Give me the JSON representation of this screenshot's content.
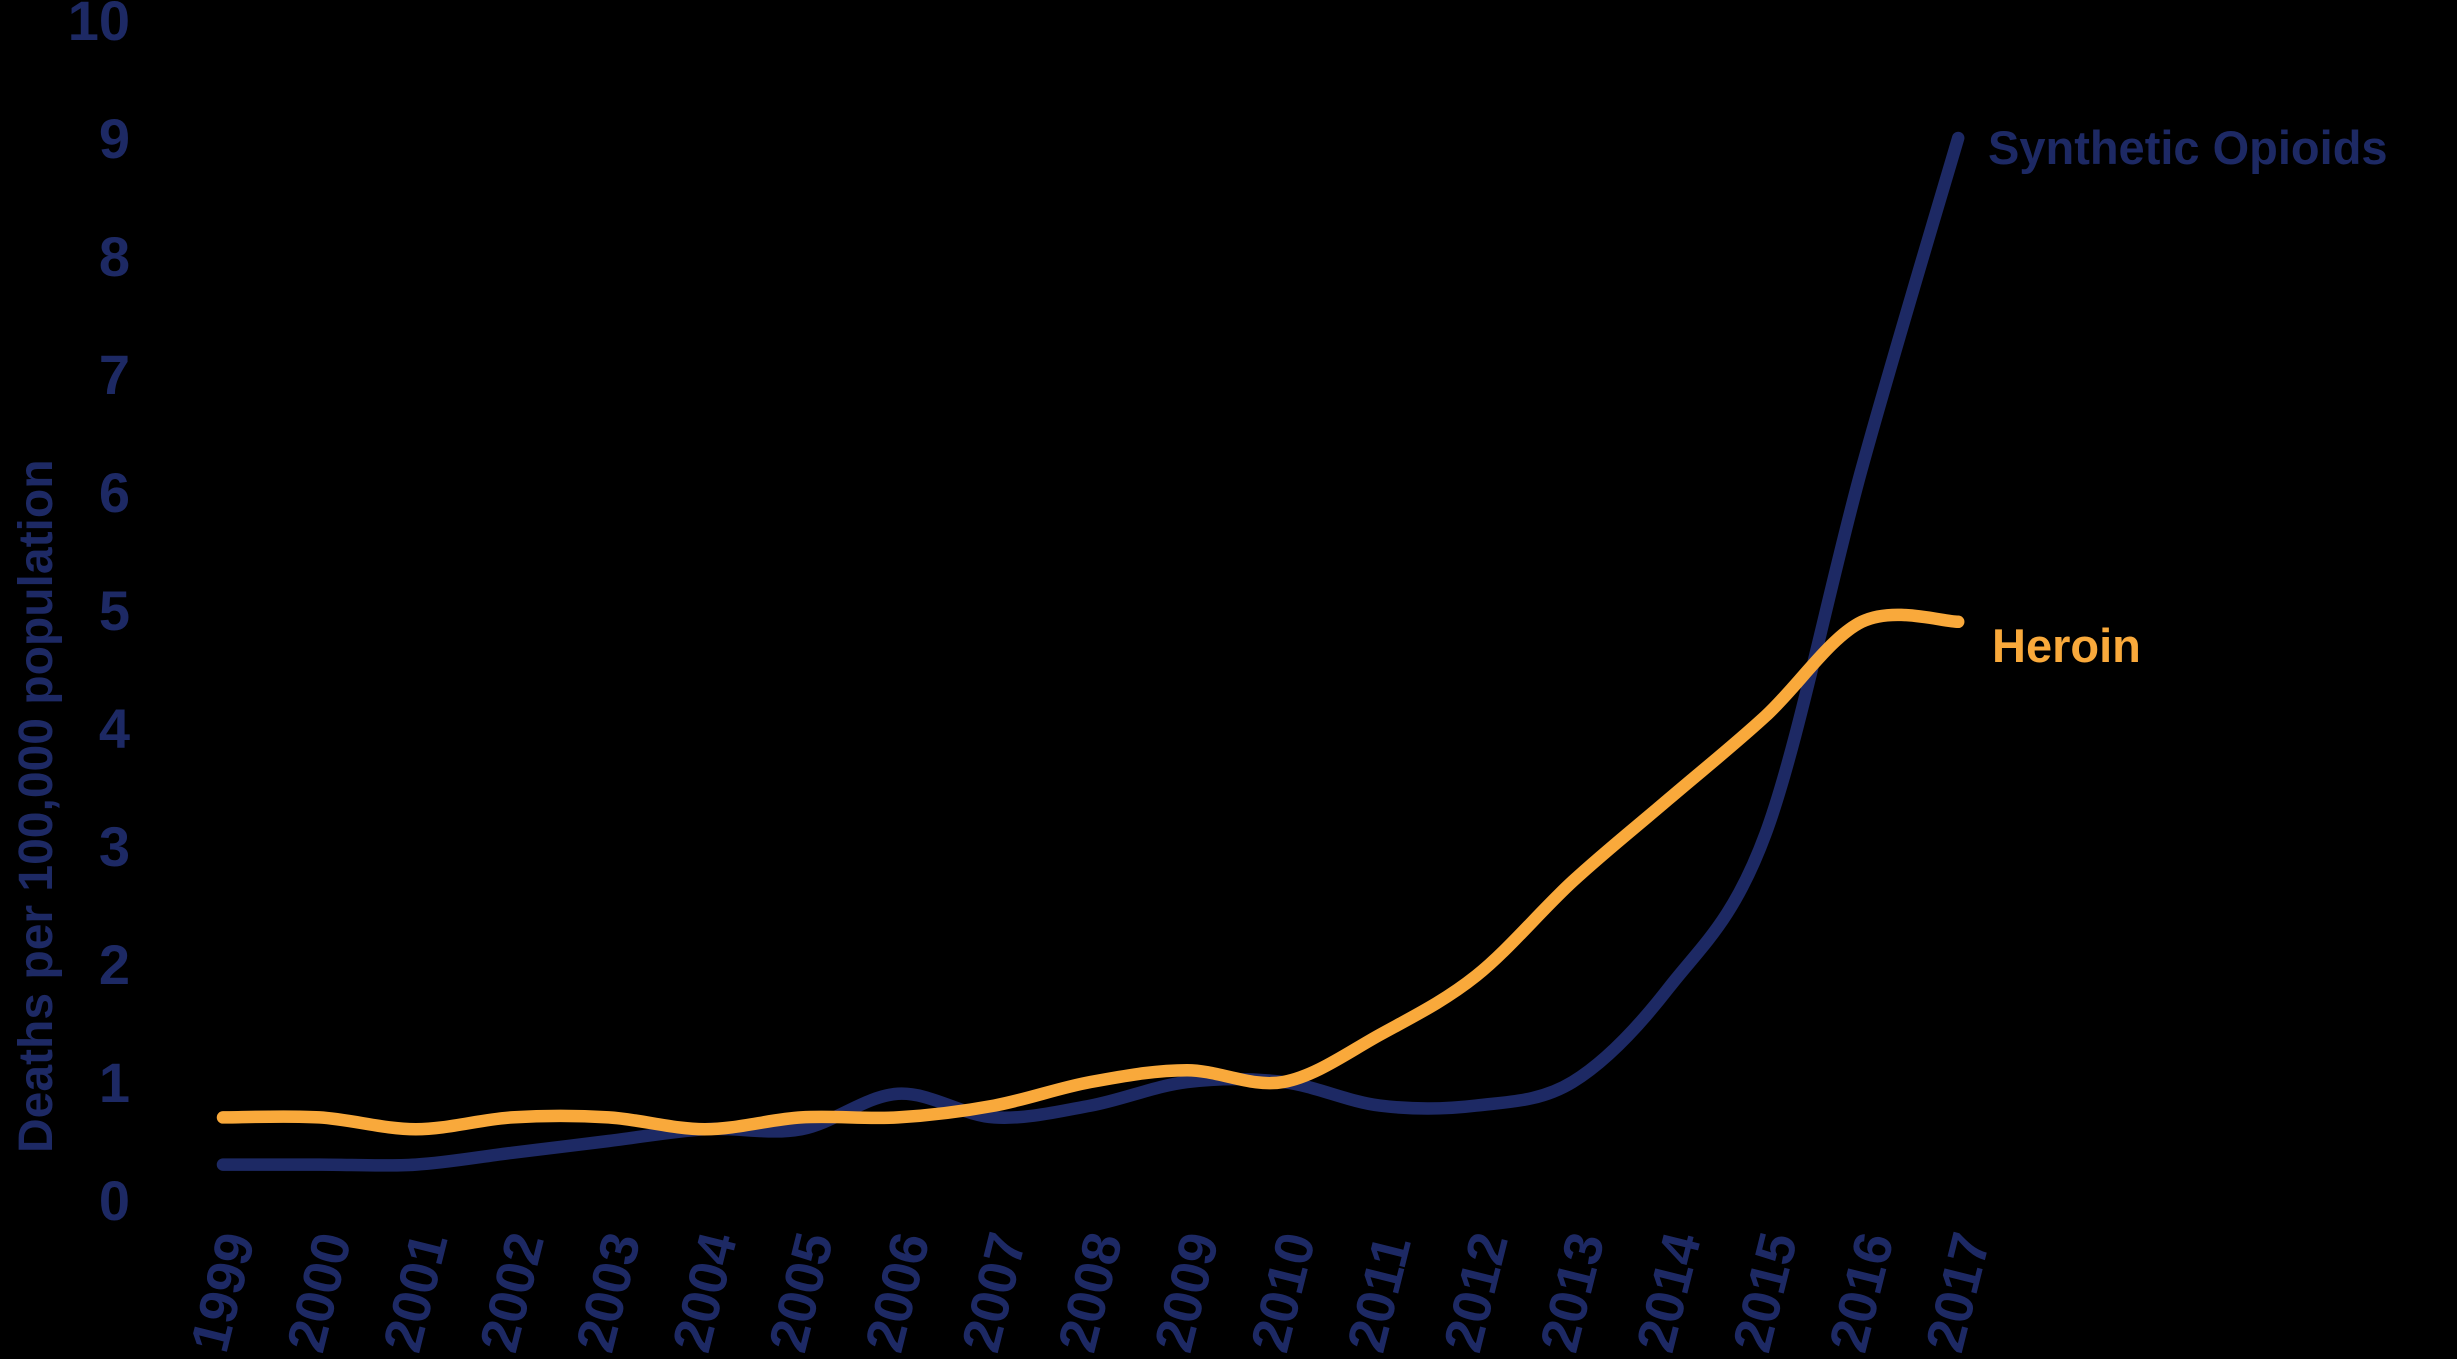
{
  "chart": {
    "background": "#000000",
    "navy": "#1D2964",
    "orange": "#F9A93B"
  },
  "chart_data": {
    "type": "line",
    "title": "",
    "xlabel": "",
    "ylabel": "Deaths per 100,000 population",
    "x": [
      "1999",
      "2000",
      "2001",
      "2002",
      "2003",
      "2004",
      "2005",
      "2006",
      "2007",
      "2008",
      "2009",
      "2010",
      "2011",
      "2012",
      "2013",
      "2014",
      "2015",
      "2016",
      "2017"
    ],
    "yticks": [
      "0",
      "1",
      "2",
      "3",
      "4",
      "5",
      "6",
      "7",
      "8",
      "9",
      "10"
    ],
    "ylim": [
      0,
      10
    ],
    "grid": false,
    "legend_position": "end-of-line-labels",
    "series": [
      {
        "name": "Synthetic Opioids",
        "color": "#1D2964",
        "values": [
          0.3,
          0.3,
          0.3,
          0.4,
          0.5,
          0.6,
          0.6,
          0.9,
          0.7,
          0.8,
          1.0,
          1.0,
          0.8,
          0.8,
          1.0,
          1.8,
          3.1,
          6.2,
          9.0
        ]
      },
      {
        "name": "Heroin",
        "color": "#F9A93B",
        "values": [
          0.7,
          0.7,
          0.6,
          0.7,
          0.7,
          0.6,
          0.7,
          0.7,
          0.8,
          1.0,
          1.1,
          1.0,
          1.4,
          1.9,
          2.7,
          3.4,
          4.1,
          4.9,
          4.9
        ]
      }
    ]
  }
}
